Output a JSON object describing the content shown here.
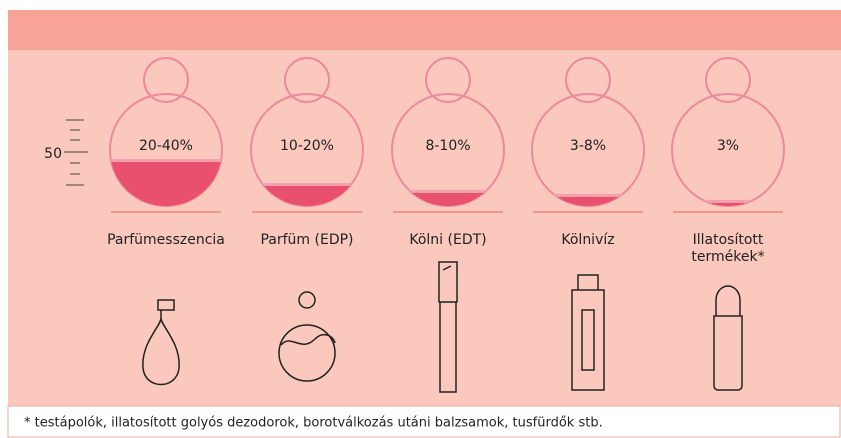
{
  "scale_label": "50",
  "items": [
    {
      "percent": "20-40%",
      "name": [
        "Parfümesszencia"
      ]
    },
    {
      "percent": "10-20%",
      "name": [
        "Parfüm (EDP)"
      ]
    },
    {
      "percent": "8-10%",
      "name": [
        "Kölni (EDT)"
      ]
    },
    {
      "percent": "3-8%",
      "name": [
        "Kölnivíz"
      ]
    },
    {
      "percent": "3%",
      "name": [
        "Illatosított",
        "termékek*"
      ]
    }
  ],
  "footnote": "* testápolók, illatosított golyós dezodorok, borotválkozás utáni balzsamok, tusfürdők stb."
}
